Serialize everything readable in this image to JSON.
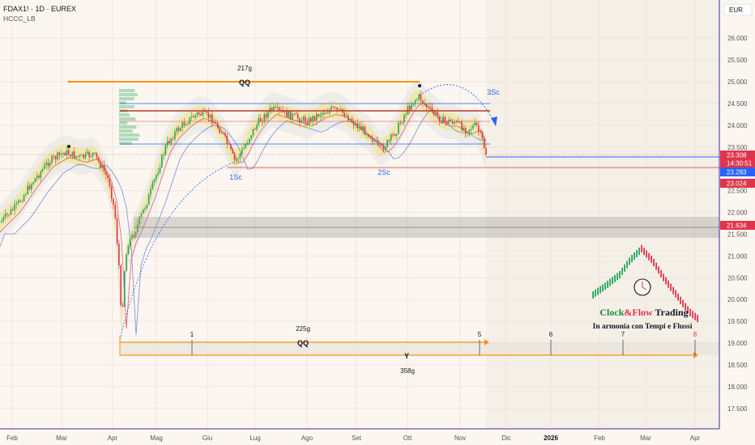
{
  "header": {
    "symbol_line": "FDAX1! · 1D · EUREX",
    "indicator": "HCCC_LB"
  },
  "currency": "EUR",
  "price_axis": {
    "ticks": [
      "26.000",
      "25.500",
      "25.000",
      "24.500",
      "24.000",
      "23.500",
      "23.000",
      "22.500",
      "22.000",
      "21.500",
      "21.000",
      "20.500",
      "20.000",
      "19.500",
      "19.000",
      "18.500",
      "18.000",
      "17.500"
    ],
    "labels": [
      {
        "name": "last-price",
        "text": "23.308",
        "color": "#e0344b"
      },
      {
        "name": "countdown",
        "text": "14:30:51",
        "color": "#e0344b"
      },
      {
        "name": "blue-level",
        "text": "23.283",
        "color": "#2962ff"
      },
      {
        "name": "red-level",
        "text": "23.024",
        "color": "#e0344b"
      },
      {
        "name": "zone-level",
        "text": "21.634",
        "color": "#e0344b"
      }
    ]
  },
  "time_axis": {
    "ticks": [
      "Feb",
      "Mar",
      "Apr",
      "Mag",
      "Giu",
      "Lug",
      "Ago",
      "Set",
      "Ott",
      "Nov",
      "Dic",
      "2026",
      "Feb",
      "Mar",
      "Apr"
    ]
  },
  "annotations": {
    "top_duration": "217g",
    "top_qq": "QQ",
    "cycle_1sc": "1Sc",
    "cycle_2sc": "2Sc",
    "cycle_3sc": "3Sc",
    "bottom_duration": "225g",
    "bottom_qq": "QQ",
    "y_label": "Y",
    "total_duration": "358g",
    "markers": [
      "1",
      "5",
      "6",
      "7",
      "8"
    ]
  },
  "logo": {
    "brand_a": "Clock",
    "amp": "&",
    "brand_b": "Flow",
    "brand_c": " Trading",
    "tagline": "In armonia con Tempi e Flussi"
  },
  "colors": {
    "background": "#fbf6ef",
    "up": "#26a65b",
    "down": "#e0344b",
    "band": "#f3e37a",
    "orange": "#f7931a",
    "blue": "#2962ff"
  }
}
